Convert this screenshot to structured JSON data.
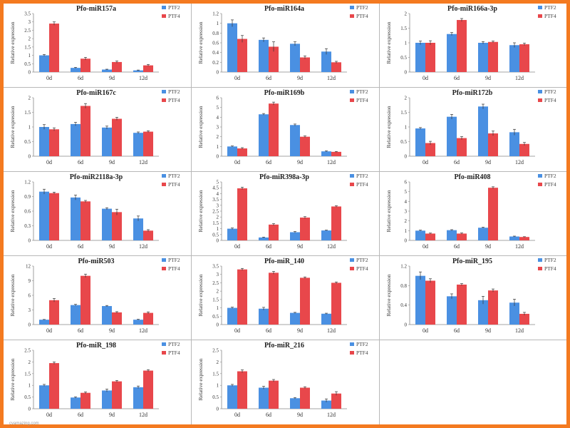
{
  "colors": {
    "ptf2": "#4a90e2",
    "ptf4": "#e8474b",
    "axis": "#888888",
    "err": "#333333"
  },
  "watermark": "cvamazing.com",
  "chart_data": [
    {
      "type": "bar",
      "title": "Pfo-miR157a",
      "ylabel": "Relative expression",
      "categories": [
        "0d",
        "6d",
        "9d",
        "12d"
      ],
      "ylim": [
        0,
        3.5
      ],
      "yticks": [
        "0",
        "0.5",
        "1",
        "1.5",
        "2",
        "2.5",
        "3",
        "3.5"
      ],
      "ystep": 0.5,
      "series": [
        {
          "name": "PTF2",
          "values": [
            1.0,
            0.25,
            0.15,
            0.1
          ],
          "errors": [
            0.05,
            0.03,
            0.02,
            0.02
          ]
        },
        {
          "name": "PTF4",
          "values": [
            2.9,
            0.8,
            0.6,
            0.4
          ],
          "errors": [
            0.1,
            0.08,
            0.06,
            0.05
          ]
        }
      ]
    },
    {
      "type": "bar",
      "title": "Pfo-miR164a",
      "ylabel": "Relative expression",
      "categories": [
        "0d",
        "6d",
        "9d",
        "12d"
      ],
      "ylim": [
        0,
        1.2
      ],
      "yticks": [
        "0",
        "0.2",
        "0.4",
        "0.6",
        "0.8",
        "1",
        "1.2"
      ],
      "ystep": 0.2,
      "series": [
        {
          "name": "PTF2",
          "values": [
            1.0,
            0.66,
            0.58,
            0.42
          ],
          "errors": [
            0.07,
            0.04,
            0.04,
            0.06
          ]
        },
        {
          "name": "PTF4",
          "values": [
            0.68,
            0.52,
            0.3,
            0.2
          ],
          "errors": [
            0.07,
            0.1,
            0.03,
            0.02
          ]
        }
      ]
    },
    {
      "type": "bar",
      "title": "Pfo-miR166a-3p",
      "ylabel": "Relative expression",
      "categories": [
        "0d",
        "6d",
        "9d",
        "12d"
      ],
      "ylim": [
        0,
        2
      ],
      "yticks": [
        "0",
        "0.5",
        "1",
        "1.5",
        "2"
      ],
      "ystep": 0.5,
      "series": [
        {
          "name": "PTF2",
          "values": [
            1.0,
            1.3,
            1.0,
            0.92
          ],
          "errors": [
            0.06,
            0.05,
            0.04,
            0.08
          ]
        },
        {
          "name": "PTF4",
          "values": [
            1.0,
            1.78,
            1.03,
            0.95
          ],
          "errors": [
            0.07,
            0.05,
            0.03,
            0.04
          ]
        }
      ]
    },
    {
      "type": "bar",
      "title": "Pfo-miR167c",
      "ylabel": "Relative expression",
      "categories": [
        "0d",
        "6d",
        "9d",
        "12d"
      ],
      "ylim": [
        0,
        2
      ],
      "yticks": [
        "0",
        "0.5",
        "1",
        "1.5",
        "2"
      ],
      "ystep": 0.5,
      "series": [
        {
          "name": "PTF2",
          "values": [
            1.0,
            1.1,
            0.98,
            0.8
          ],
          "errors": [
            0.08,
            0.06,
            0.05,
            0.03
          ]
        },
        {
          "name": "PTF4",
          "values": [
            0.92,
            1.72,
            1.28,
            0.84
          ],
          "errors": [
            0.05,
            0.08,
            0.05,
            0.03
          ]
        }
      ]
    },
    {
      "type": "bar",
      "title": "Pfo-miR169b",
      "ylabel": "Relative expression",
      "categories": [
        "0d",
        "6d",
        "9d",
        "12d"
      ],
      "ylim": [
        0,
        6
      ],
      "yticks": [
        "0",
        "1",
        "2",
        "3",
        "4",
        "5",
        "6"
      ],
      "ystep": 1,
      "series": [
        {
          "name": "PTF2",
          "values": [
            1.0,
            4.3,
            3.2,
            0.5
          ],
          "errors": [
            0.05,
            0.08,
            0.1,
            0.05
          ]
        },
        {
          "name": "PTF4",
          "values": [
            0.8,
            5.4,
            2.0,
            0.45
          ],
          "errors": [
            0.08,
            0.15,
            0.08,
            0.04
          ]
        }
      ]
    },
    {
      "type": "bar",
      "title": "Pfo-miR172b",
      "ylabel": "Relative expression",
      "categories": [
        "0d",
        "6d",
        "9d",
        "12d"
      ],
      "ylim": [
        0,
        2
      ],
      "yticks": [
        "0",
        "0.5",
        "1",
        "1.5",
        "2"
      ],
      "ystep": 0.5,
      "series": [
        {
          "name": "PTF2",
          "values": [
            0.95,
            1.35,
            1.7,
            0.82
          ],
          "errors": [
            0.03,
            0.08,
            0.08,
            0.1
          ]
        },
        {
          "name": "PTF4",
          "values": [
            0.45,
            0.62,
            0.78,
            0.42
          ],
          "errors": [
            0.06,
            0.05,
            0.08,
            0.05
          ]
        }
      ]
    },
    {
      "type": "bar",
      "title": "Pfo-miR2118a-3p",
      "ylabel": "Relative expression",
      "categories": [
        "0d",
        "6d",
        "9d",
        "12d"
      ],
      "ylim": [
        0,
        1.2
      ],
      "yticks": [
        "0",
        "0.3",
        "0.6",
        "0.9",
        "1.2"
      ],
      "ystep": 0.3,
      "series": [
        {
          "name": "PTF2",
          "values": [
            1.0,
            0.88,
            0.65,
            0.45
          ],
          "errors": [
            0.05,
            0.05,
            0.02,
            0.05
          ]
        },
        {
          "name": "PTF4",
          "values": [
            0.97,
            0.8,
            0.58,
            0.2
          ],
          "errors": [
            0.02,
            0.02,
            0.06,
            0.02
          ]
        }
      ]
    },
    {
      "type": "bar",
      "title": "Pfo-miR398a-3p",
      "ylabel": "Relative expression",
      "categories": [
        "0d",
        "6d",
        "9d",
        "12d"
      ],
      "ylim": [
        0,
        5
      ],
      "yticks": [
        "0",
        "0.5",
        "1",
        "1.5",
        "2",
        "2.5",
        "3",
        "3.5",
        "4",
        "4.5",
        "5"
      ],
      "ystep": 0.5,
      "series": [
        {
          "name": "PTF2",
          "values": [
            1.0,
            0.25,
            0.7,
            0.85
          ],
          "errors": [
            0.06,
            0.03,
            0.06,
            0.03
          ]
        },
        {
          "name": "PTF4",
          "values": [
            4.45,
            1.35,
            1.95,
            2.9
          ],
          "errors": [
            0.1,
            0.08,
            0.08,
            0.06
          ]
        }
      ]
    },
    {
      "type": "bar",
      "title": "Pfo-miR408",
      "ylabel": "Relative expression",
      "categories": [
        "0d",
        "6d",
        "9d",
        "12d"
      ],
      "ylim": [
        0,
        6
      ],
      "yticks": [
        "0",
        "1",
        "2",
        "3",
        "4",
        "5",
        "6"
      ],
      "ystep": 1,
      "series": [
        {
          "name": "PTF2",
          "values": [
            1.0,
            1.05,
            1.3,
            0.4
          ],
          "errors": [
            0.05,
            0.05,
            0.05,
            0.04
          ]
        },
        {
          "name": "PTF4",
          "values": [
            0.7,
            0.7,
            5.4,
            0.35
          ],
          "errors": [
            0.05,
            0.06,
            0.1,
            0.03
          ]
        }
      ]
    },
    {
      "type": "bar",
      "title": "Pfo-miR503",
      "ylabel": "Relative expression",
      "categories": [
        "0d",
        "6d",
        "9d",
        "12d"
      ],
      "ylim": [
        0,
        12
      ],
      "yticks": [
        "0",
        "3",
        "6",
        "9",
        "12"
      ],
      "ystep": 3,
      "series": [
        {
          "name": "PTF2",
          "values": [
            1.0,
            4.0,
            3.8,
            1.0
          ],
          "errors": [
            0.05,
            0.15,
            0.12,
            0.08
          ]
        },
        {
          "name": "PTF4",
          "values": [
            5.0,
            10.0,
            2.5,
            2.4
          ],
          "errors": [
            0.35,
            0.35,
            0.15,
            0.2
          ]
        }
      ]
    },
    {
      "type": "bar",
      "title": "Pfo-miR_140",
      "ylabel": "Relative expression",
      "categories": [
        "0d",
        "6d",
        "9d",
        "12d"
      ],
      "ylim": [
        0,
        3.5
      ],
      "yticks": [
        "0",
        "0.5",
        "1",
        "1.5",
        "2",
        "2.5",
        "3",
        "3.5"
      ],
      "ystep": 0.5,
      "series": [
        {
          "name": "PTF2",
          "values": [
            1.0,
            0.95,
            0.7,
            0.65
          ],
          "errors": [
            0.04,
            0.08,
            0.03,
            0.03
          ]
        },
        {
          "name": "PTF4",
          "values": [
            3.3,
            3.1,
            2.8,
            2.5
          ],
          "errors": [
            0.06,
            0.08,
            0.05,
            0.05
          ]
        }
      ]
    },
    {
      "type": "bar",
      "title": "Pfo-miR_195",
      "ylabel": "Relative expression",
      "categories": [
        "0d",
        "6d",
        "9d",
        "12d"
      ],
      "ylim": [
        0,
        1.2
      ],
      "yticks": [
        "0",
        "0.4",
        "0.8",
        "1.2"
      ],
      "ystep": 0.4,
      "series": [
        {
          "name": "PTF2",
          "values": [
            1.0,
            0.58,
            0.5,
            0.45
          ],
          "errors": [
            0.08,
            0.05,
            0.08,
            0.07
          ]
        },
        {
          "name": "PTF4",
          "values": [
            0.9,
            0.82,
            0.7,
            0.22
          ],
          "errors": [
            0.04,
            0.02,
            0.03,
            0.03
          ]
        }
      ]
    },
    {
      "type": "bar",
      "title": "Pfo-miR_198",
      "ylabel": "Relative expression",
      "categories": [
        "0d",
        "6d",
        "9d",
        "12d"
      ],
      "ylim": [
        0,
        2.5
      ],
      "yticks": [
        "0",
        "0.5",
        "1",
        "1.5",
        "2",
        "2.5"
      ],
      "ystep": 0.5,
      "series": [
        {
          "name": "PTF2",
          "values": [
            1.0,
            0.48,
            0.78,
            0.92
          ],
          "errors": [
            0.04,
            0.03,
            0.06,
            0.05
          ]
        },
        {
          "name": "PTF4",
          "values": [
            1.95,
            0.68,
            1.17,
            1.63
          ],
          "errors": [
            0.05,
            0.04,
            0.04,
            0.04
          ]
        }
      ]
    },
    {
      "type": "bar",
      "title": "Pfo-miR_216",
      "ylabel": "Relative expression",
      "categories": [
        "0d",
        "6d",
        "9d",
        "12d"
      ],
      "ylim": [
        0,
        2.5
      ],
      "yticks": [
        "0",
        "0.5",
        "1",
        "1.5",
        "2",
        "2.5"
      ],
      "ystep": 0.5,
      "series": [
        {
          "name": "PTF2",
          "values": [
            1.0,
            0.9,
            0.45,
            0.35
          ],
          "errors": [
            0.04,
            0.06,
            0.03,
            0.07
          ]
        },
        {
          "name": "PTF4",
          "values": [
            1.6,
            1.2,
            0.9,
            0.65
          ],
          "errors": [
            0.06,
            0.05,
            0.04,
            0.08
          ]
        }
      ]
    }
  ]
}
